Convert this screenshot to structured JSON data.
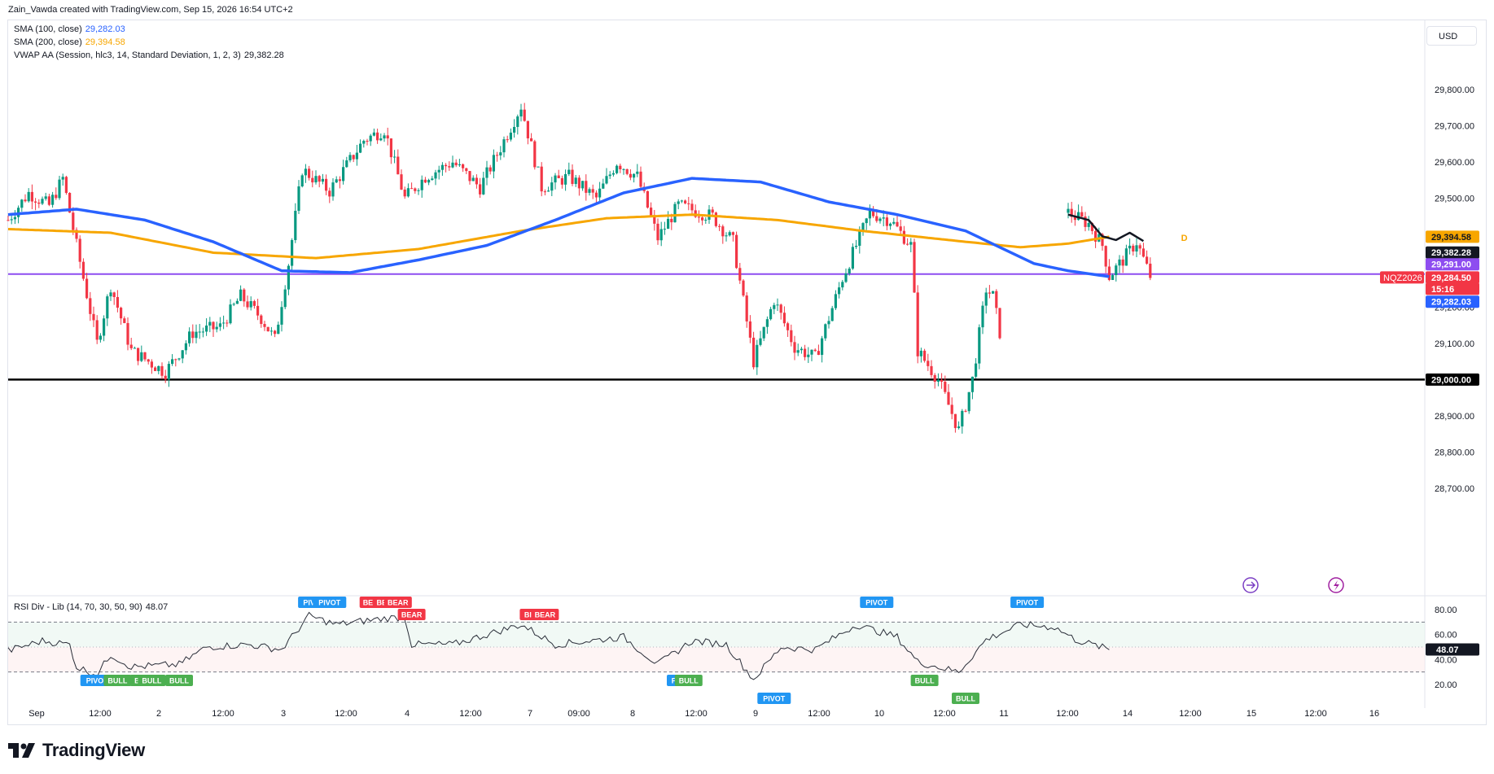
{
  "header": {
    "credit": "Zain_Vawda created with TradingView.com, Sep 15, 2026 16:54 UTC+2"
  },
  "legend": {
    "sma100": {
      "label": "SMA (100, close)",
      "value": "29,282.03",
      "color": "#2962ff"
    },
    "sma200": {
      "label": "SMA (200, close)",
      "value": "29,394.58",
      "color": "#f7a600"
    },
    "vwap": {
      "label": "VWAP AA (Session, hlc3, 14, Standard Deviation, 1, 2, 3)",
      "value": "29,382.28",
      "color": "#131722"
    }
  },
  "currency": "USD",
  "rsi_legend": {
    "label": "RSI Div - Lib (14, 70, 30, 50, 90)",
    "value": "48.07"
  },
  "brand": {
    "name": "TradingView",
    "icon": "tradingview-logo-icon"
  },
  "icons": {
    "replay": "replay-icon",
    "lightning": "lightning-icon"
  },
  "colors": {
    "up": "#089981",
    "down": "#f23645",
    "sma100": "#2962ff",
    "sma200": "#f7a600",
    "vwap": "#131722",
    "hline_purple": "#8e4df0",
    "hline_black": "#000000",
    "rsi_line": "#2a2e39",
    "bull": "#4caf50",
    "bear": "#f23645",
    "pivot": "#2196f3"
  },
  "chart_data": [
    {
      "type": "candlestick",
      "title": "",
      "symbol": "NQZ2026",
      "ylim": [
        28650,
        29950
      ],
      "y_ticks": [
        "29,800.00",
        "29,700.00",
        "29,600.00",
        "29,500.00",
        "29,200.00",
        "29,100.00",
        "29,000.00",
        "28,900.00",
        "28,800.00",
        "28,700.00"
      ],
      "x_ticks": [
        "Sep",
        "12:00",
        "2",
        "12:00",
        "3",
        "12:00",
        "4",
        "12:00",
        "7",
        "09:00",
        "8",
        "12:00",
        "9",
        "12:00",
        "10",
        "12:00",
        "11",
        "12:00",
        "14",
        "12:00",
        "15",
        "12:00",
        "16"
      ],
      "horizontal_lines": [
        {
          "value": 29291,
          "color": "#8e4df0"
        },
        {
          "value": 29000,
          "color": "#000000",
          "label": "29,000.00"
        }
      ],
      "price_labels": [
        {
          "text": "29,394.58",
          "bg": "#f7a600",
          "fg": "#131722"
        },
        {
          "text": "29,382.28",
          "bg": "#131722",
          "fg": "#ffffff"
        },
        {
          "text": "29,291.00",
          "bg": "#8e4df0",
          "fg": "#ffffff"
        },
        {
          "text": "29,284.50",
          "bg": "#f23645",
          "fg": "#ffffff"
        },
        {
          "text": "15:16",
          "bg": "#f23645",
          "fg": "#ffffff"
        },
        {
          "text": "29,282.03",
          "bg": "#2962ff",
          "fg": "#ffffff"
        },
        {
          "text": "29,000.00",
          "bg": "#000000",
          "fg": "#ffffff"
        }
      ],
      "symbol_label": "NQZ2026",
      "last_price": "29,284.50",
      "countdown": "15:16",
      "dividend_marker": "D",
      "candle_anchors": [
        {
          "t": 0,
          "p": 29440
        },
        {
          "t": 6,
          "p": 29515
        },
        {
          "t": 12,
          "p": 29480
        },
        {
          "t": 16,
          "p": 29555
        },
        {
          "t": 20,
          "p": 29370
        },
        {
          "t": 26,
          "p": 29100
        },
        {
          "t": 30,
          "p": 29260
        },
        {
          "t": 36,
          "p": 29080
        },
        {
          "t": 46,
          "p": 29020
        },
        {
          "t": 54,
          "p": 29130
        },
        {
          "t": 62,
          "p": 29145
        },
        {
          "t": 68,
          "p": 29230
        },
        {
          "t": 74,
          "p": 29170
        },
        {
          "t": 78,
          "p": 29110
        },
        {
          "t": 82,
          "p": 29320
        },
        {
          "t": 86,
          "p": 29580
        },
        {
          "t": 94,
          "p": 29520
        },
        {
          "t": 104,
          "p": 29660
        },
        {
          "t": 110,
          "p": 29690
        },
        {
          "t": 116,
          "p": 29500
        },
        {
          "t": 122,
          "p": 29560
        },
        {
          "t": 130,
          "p": 29600
        },
        {
          "t": 138,
          "p": 29530
        },
        {
          "t": 144,
          "p": 29640
        },
        {
          "t": 150,
          "p": 29755
        },
        {
          "t": 156,
          "p": 29530
        },
        {
          "t": 164,
          "p": 29560
        },
        {
          "t": 172,
          "p": 29500
        },
        {
          "t": 178,
          "p": 29600
        },
        {
          "t": 184,
          "p": 29560
        },
        {
          "t": 190,
          "p": 29390
        },
        {
          "t": 196,
          "p": 29480
        },
        {
          "t": 206,
          "p": 29450
        },
        {
          "t": 212,
          "p": 29380
        },
        {
          "t": 218,
          "p": 29050
        },
        {
          "t": 224,
          "p": 29220
        },
        {
          "t": 230,
          "p": 29090
        },
        {
          "t": 236,
          "p": 29060
        },
        {
          "t": 244,
          "p": 29280
        },
        {
          "t": 252,
          "p": 29460
        },
        {
          "t": 258,
          "p": 29440
        },
        {
          "t": 264,
          "p": 29370
        },
        {
          "t": 266,
          "p": 29080
        },
        {
          "t": 272,
          "p": 29000
        },
        {
          "t": 278,
          "p": 28860
        },
        {
          "t": 282,
          "p": 29000
        },
        {
          "t": 286,
          "p": 29250
        },
        {
          "t": 288,
          "p": 29230
        },
        {
          "t": 290,
          "p": 29130
        }
      ],
      "candle_anchors_2": [
        {
          "t": 0,
          "p": 29460
        },
        {
          "t": 6,
          "p": 29430
        },
        {
          "t": 10,
          "p": 29370
        },
        {
          "t": 12,
          "p": 29285
        },
        {
          "t": 16,
          "p": 29330
        },
        {
          "t": 20,
          "p": 29380
        },
        {
          "t": 24,
          "p": 29285
        }
      ],
      "sma100": [
        {
          "t": 0,
          "p": 29455
        },
        {
          "t": 20,
          "p": 29470
        },
        {
          "t": 40,
          "p": 29440
        },
        {
          "t": 60,
          "p": 29380
        },
        {
          "t": 80,
          "p": 29300
        },
        {
          "t": 100,
          "p": 29295
        },
        {
          "t": 120,
          "p": 29330
        },
        {
          "t": 140,
          "p": 29370
        },
        {
          "t": 160,
          "p": 29440
        },
        {
          "t": 180,
          "p": 29515
        },
        {
          "t": 200,
          "p": 29555
        },
        {
          "t": 220,
          "p": 29545
        },
        {
          "t": 240,
          "p": 29490
        },
        {
          "t": 260,
          "p": 29455
        },
        {
          "t": 280,
          "p": 29410
        },
        {
          "t": 300,
          "p": 29320
        },
        {
          "t": 310,
          "p": 29300
        },
        {
          "t": 322,
          "p": 29284
        }
      ],
      "sma200": [
        {
          "t": 0,
          "p": 29415
        },
        {
          "t": 30,
          "p": 29405
        },
        {
          "t": 60,
          "p": 29350
        },
        {
          "t": 90,
          "p": 29335
        },
        {
          "t": 120,
          "p": 29360
        },
        {
          "t": 150,
          "p": 29410
        },
        {
          "t": 175,
          "p": 29445
        },
        {
          "t": 200,
          "p": 29455
        },
        {
          "t": 225,
          "p": 29440
        },
        {
          "t": 250,
          "p": 29410
        },
        {
          "t": 280,
          "p": 29380
        },
        {
          "t": 296,
          "p": 29365
        },
        {
          "t": 310,
          "p": 29375
        },
        {
          "t": 322,
          "p": 29394
        }
      ],
      "vwap": [
        {
          "t": 300,
          "p": 29455
        },
        {
          "t": 306,
          "p": 29440
        },
        {
          "t": 310,
          "p": 29395
        },
        {
          "t": 314,
          "p": 29385
        },
        {
          "t": 318,
          "p": 29405
        },
        {
          "t": 322,
          "p": 29382
        }
      ]
    },
    {
      "type": "line",
      "title": "RSI Div - Lib (14, 70, 30, 50, 90)",
      "ylim": [
        10,
        90
      ],
      "y_ticks": [
        "80.00",
        "60.00",
        "40.00",
        "20.00"
      ],
      "bands": [
        70,
        50,
        30
      ],
      "last_value": "48.07",
      "rsi_anchors": [
        {
          "t": 0,
          "p": 47
        },
        {
          "t": 10,
          "p": 55
        },
        {
          "t": 18,
          "p": 52
        },
        {
          "t": 20,
          "p": 34
        },
        {
          "t": 26,
          "p": 28
        },
        {
          "t": 30,
          "p": 44
        },
        {
          "t": 36,
          "p": 34
        },
        {
          "t": 50,
          "p": 36
        },
        {
          "t": 58,
          "p": 50
        },
        {
          "t": 70,
          "p": 52
        },
        {
          "t": 80,
          "p": 48
        },
        {
          "t": 88,
          "p": 75
        },
        {
          "t": 96,
          "p": 68
        },
        {
          "t": 110,
          "p": 73
        },
        {
          "t": 116,
          "p": 74
        },
        {
          "t": 118,
          "p": 52
        },
        {
          "t": 130,
          "p": 52
        },
        {
          "t": 150,
          "p": 68
        },
        {
          "t": 160,
          "p": 52
        },
        {
          "t": 180,
          "p": 58
        },
        {
          "t": 190,
          "p": 36
        },
        {
          "t": 200,
          "p": 55
        },
        {
          "t": 210,
          "p": 52
        },
        {
          "t": 218,
          "p": 24
        },
        {
          "t": 226,
          "p": 50
        },
        {
          "t": 236,
          "p": 48
        },
        {
          "t": 248,
          "p": 68
        },
        {
          "t": 260,
          "p": 58
        },
        {
          "t": 266,
          "p": 38
        },
        {
          "t": 278,
          "p": 30
        },
        {
          "t": 286,
          "p": 56
        },
        {
          "t": 296,
          "p": 68
        },
        {
          "t": 306,
          "p": 66
        },
        {
          "t": 312,
          "p": 56
        },
        {
          "t": 322,
          "p": 48
        }
      ],
      "markers": [
        {
          "text": "PIVOT",
          "kind": "pivot",
          "t": 26,
          "pos": "below"
        },
        {
          "text": "BULL",
          "kind": "bull",
          "t": 32,
          "pos": "below"
        },
        {
          "text": "BI",
          "kind": "bull",
          "t": 38,
          "pos": "below"
        },
        {
          "text": "BULL",
          "kind": "bull",
          "t": 42,
          "pos": "below"
        },
        {
          "text": "BULL",
          "kind": "bull",
          "t": 50,
          "pos": "below"
        },
        {
          "text": "PIV",
          "kind": "pivot",
          "t": 88,
          "pos": "above"
        },
        {
          "text": "PIVOT",
          "kind": "pivot",
          "t": 94,
          "pos": "above"
        },
        {
          "text": "BEA",
          "kind": "bear",
          "t": 106,
          "pos": "above"
        },
        {
          "text": "BEA",
          "kind": "bear",
          "t": 110,
          "pos": "above"
        },
        {
          "text": "BEAR",
          "kind": "bear",
          "t": 114,
          "pos": "above"
        },
        {
          "text": "BEAR",
          "kind": "bear",
          "t": 118,
          "pos": "above2"
        },
        {
          "text": "BI",
          "kind": "bear",
          "t": 152,
          "pos": "above2"
        },
        {
          "text": "BEAR",
          "kind": "bear",
          "t": 157,
          "pos": "above2"
        },
        {
          "text": "PI",
          "kind": "pivot",
          "t": 195,
          "pos": "below"
        },
        {
          "text": "BULL",
          "kind": "bull",
          "t": 199,
          "pos": "below"
        },
        {
          "text": "PIVOT",
          "kind": "pivot",
          "t": 224,
          "pos": "below2"
        },
        {
          "text": "PIVOT",
          "kind": "pivot",
          "t": 254,
          "pos": "above"
        },
        {
          "text": "BULL",
          "kind": "bull",
          "t": 268,
          "pos": "below"
        },
        {
          "text": "BULL",
          "kind": "bull",
          "t": 280,
          "pos": "below2"
        },
        {
          "text": "PIVOT",
          "kind": "pivot",
          "t": 298,
          "pos": "above"
        }
      ]
    }
  ]
}
